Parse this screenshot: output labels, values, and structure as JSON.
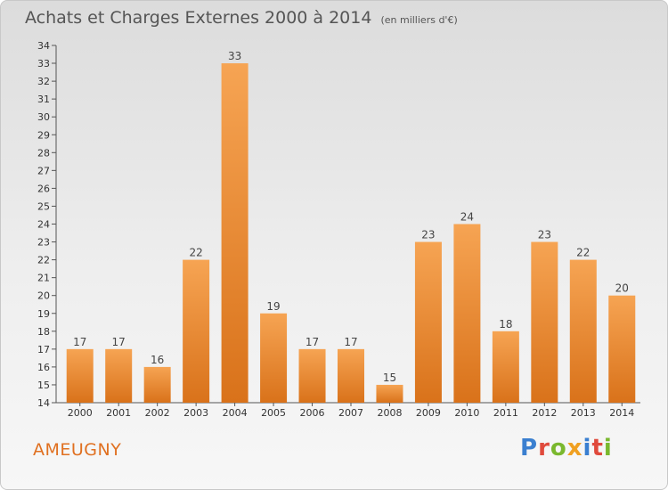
{
  "title": {
    "main": "Achats et Charges Externes 2000 à 2014",
    "unit": "(en milliers d'€)"
  },
  "commune": "AMEUGNY",
  "brand": [
    "P",
    "r",
    "o",
    "x",
    "i",
    "t",
    "i"
  ],
  "colors": {
    "bar_top": "#f6a453",
    "bar_bottom": "#d9721a",
    "axis": "#555555",
    "commune": "#e07020"
  },
  "chart_data": {
    "type": "bar",
    "categories": [
      "2000",
      "2001",
      "2002",
      "2003",
      "2004",
      "2005",
      "2006",
      "2007",
      "2008",
      "2009",
      "2010",
      "2011",
      "2012",
      "2013",
      "2014"
    ],
    "values": [
      17,
      17,
      16,
      22,
      33,
      19,
      17,
      17,
      15,
      23,
      24,
      18,
      23,
      22,
      20
    ],
    "ylim": [
      14,
      34
    ],
    "yticks": [
      14,
      15,
      16,
      17,
      18,
      19,
      20,
      21,
      22,
      23,
      24,
      25,
      26,
      27,
      28,
      29,
      30,
      31,
      32,
      33,
      34
    ],
    "grid": false,
    "legend": "none"
  }
}
